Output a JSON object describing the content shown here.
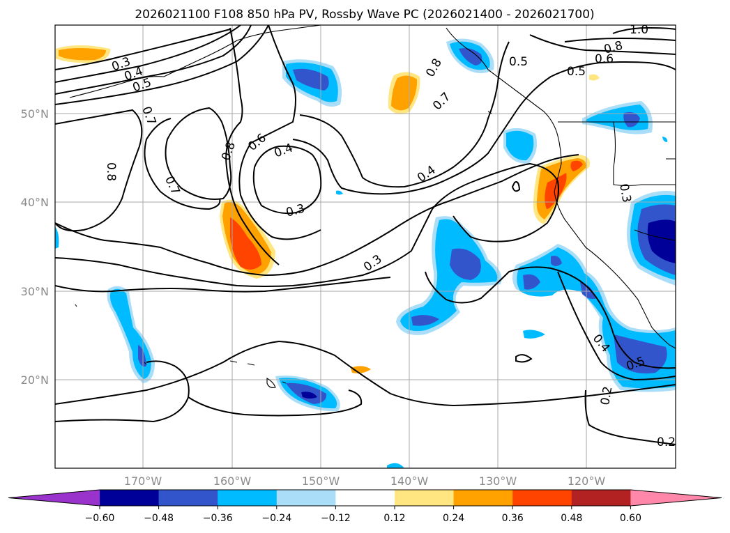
{
  "title": "2026021100 F108 850 hPa PV, Rossby Wave PC (2026021400 - 2026021700)",
  "lat_labels": [
    "50°N",
    "40°N",
    "30°N",
    "20°N"
  ],
  "lon_labels": [
    "170°W",
    "160°W",
    "150°W",
    "140°W",
    "130°W",
    "120°W"
  ],
  "colorbar": {
    "ticks": [
      "−0.60",
      "−0.48",
      "−0.36",
      "−0.24",
      "−0.12",
      "0.12",
      "0.24",
      "0.36",
      "0.48",
      "0.60"
    ],
    "colors": [
      "#9933cc",
      "#000099",
      "#3355cc",
      "#00bbff",
      "#aaddf7",
      "#ffffff",
      "#ffe680",
      "#ffa200",
      "#ff4400",
      "#b22222",
      "#ff88aa"
    ]
  },
  "contour_labels": [
    "0.3",
    "0.4",
    "0.5",
    "0.7",
    "0.8",
    "0.7",
    "0.8",
    "0.6",
    "0.4",
    "0.3",
    "0.3",
    "0.8",
    "0.7",
    "0.5",
    "0.5",
    "1.0",
    "0.8",
    "0.6",
    "0.4",
    "0.3",
    "0.4",
    "0.5",
    "0.2",
    "0.2"
  ],
  "colors": {
    "frame": "#000000",
    "grid": "#a9a9a9",
    "axis_text": "#8a8a8a"
  }
}
